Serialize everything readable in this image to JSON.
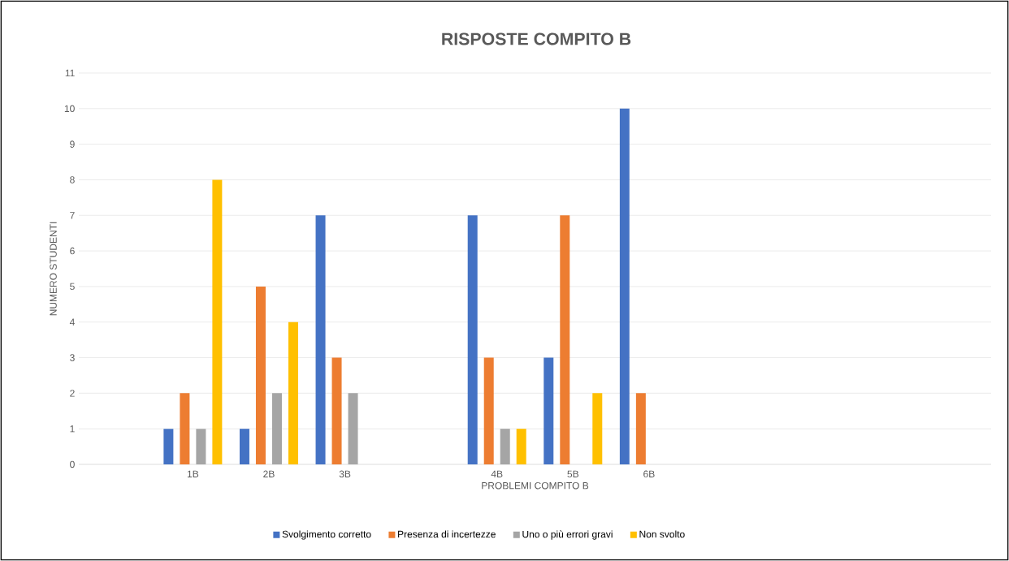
{
  "chart_data": {
    "type": "bar",
    "title": "RISPOSTE COMPITO B",
    "xlabel": "PROBLEMI COMPITO B",
    "ylabel": "NUMERO STUDENTI",
    "categories": [
      null,
      "1B",
      "2B",
      "3B",
      null,
      "4B",
      "5B",
      "6B",
      null,
      null,
      null,
      null
    ],
    "series": [
      {
        "name": "Svolgimento corretto",
        "color": "#4472c4",
        "values": [
          null,
          1,
          1,
          7,
          null,
          7,
          3,
          10,
          null,
          null,
          null,
          null
        ]
      },
      {
        "name": "Presenza di incertezze",
        "color": "#ed7d31",
        "values": [
          null,
          2,
          5,
          3,
          null,
          3,
          7,
          2,
          null,
          null,
          null,
          null
        ]
      },
      {
        "name": "Uno o più errori gravi",
        "color": "#a5a5a5",
        "values": [
          null,
          1,
          2,
          2,
          null,
          1,
          0,
          0,
          null,
          null,
          null,
          null
        ]
      },
      {
        "name": "Non svolto",
        "color": "#ffc000",
        "values": [
          null,
          8,
          4,
          0,
          null,
          1,
          2,
          0,
          null,
          null,
          null,
          null
        ]
      }
    ],
    "ylim": [
      0,
      11
    ],
    "yticks": [
      0,
      1,
      2,
      3,
      4,
      5,
      6,
      7,
      8,
      9,
      10,
      11
    ],
    "grid": "y",
    "legend": "bottom"
  }
}
